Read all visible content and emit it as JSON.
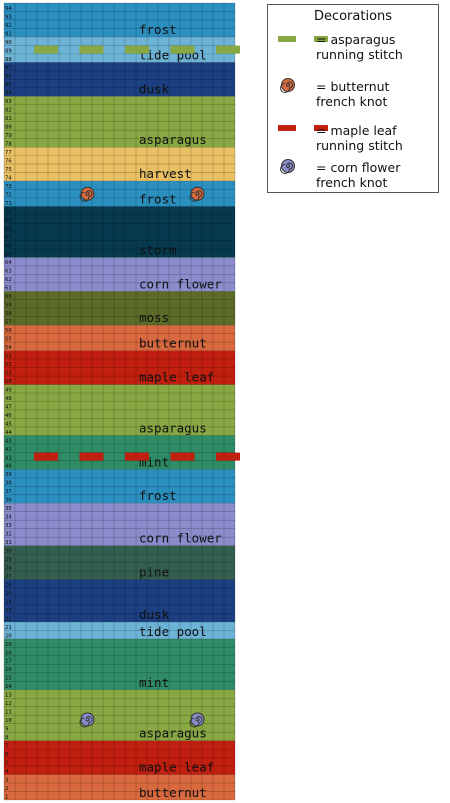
{
  "bands": [
    {
      "name": "butternut",
      "color": "#d9693e",
      "rows": [
        1,
        3
      ]
    },
    {
      "name": "maple leaf",
      "color": "#c11f10",
      "rows": [
        4,
        7
      ]
    },
    {
      "name": "asparagus",
      "color": "#88a843",
      "rows": [
        8,
        13
      ]
    },
    {
      "name": "mint",
      "color": "#2f8c66",
      "rows": [
        14,
        19
      ]
    },
    {
      "name": "tide pool",
      "color": "#6cb3d6",
      "rows": [
        20,
        21
      ]
    },
    {
      "name": "dusk",
      "color": "#1b3f80",
      "rows": [
        22,
        26
      ]
    },
    {
      "name": "pine",
      "color": "#345f50",
      "rows": [
        27,
        30
      ]
    },
    {
      "name": "corn flower",
      "color": "#8a8ccc",
      "rows": [
        31,
        35
      ]
    },
    {
      "name": "frost",
      "color": "#2b8fbf",
      "rows": [
        36,
        39
      ]
    },
    {
      "name": "mint",
      "color": "#2f8c66",
      "rows": [
        40,
        43
      ]
    },
    {
      "name": "asparagus",
      "color": "#88a843",
      "rows": [
        44,
        49
      ]
    },
    {
      "name": "maple leaf",
      "color": "#c11f10",
      "rows": [
        50,
        53
      ]
    },
    {
      "name": "butternut",
      "color": "#d9693e",
      "rows": [
        54,
        56
      ]
    },
    {
      "name": "moss",
      "color": "#5d6b28",
      "rows": [
        57,
        60
      ]
    },
    {
      "name": "corn flower",
      "color": "#8a8ccc",
      "rows": [
        61,
        64
      ]
    },
    {
      "name": "storm",
      "color": "#073a4e",
      "rows": [
        65,
        70
      ]
    },
    {
      "name": "frost",
      "color": "#2b8fbf",
      "rows": [
        71,
        73
      ]
    },
    {
      "name": "harvest",
      "color": "#e9c063",
      "rows": [
        74,
        77
      ]
    },
    {
      "name": "asparagus",
      "color": "#88a843",
      "rows": [
        78,
        83
      ]
    },
    {
      "name": "dusk",
      "color": "#1b3f80",
      "rows": [
        84,
        87
      ]
    },
    {
      "name": "tide pool",
      "color": "#6cb3d6",
      "rows": [
        88,
        90
      ]
    },
    {
      "name": "frost",
      "color": "#2b8fbf",
      "rows": [
        91,
        94
      ]
    }
  ],
  "decorations": [
    {
      "type": "running-stitch",
      "thread": "asparagus",
      "color": "#88a843",
      "row": 89
    },
    {
      "type": "french-knot",
      "thread": "butternut",
      "color": "#d9693e",
      "row": 72,
      "columns": [
        7,
        17
      ]
    },
    {
      "type": "running-stitch",
      "thread": "maple leaf",
      "color": "#c11f10",
      "row": 41
    },
    {
      "type": "french-knot",
      "thread": "corn flower",
      "color": "#8a8ccc",
      "row": 10,
      "columns": [
        7,
        17
      ]
    }
  ],
  "legend": {
    "title": "Decorations",
    "entries": [
      {
        "label": "= asparagus\nrunning stitch",
        "kind": "stitch",
        "color": "#88a843"
      },
      {
        "label": "= butternut\nfrench knot",
        "kind": "knot",
        "color": "#d9693e"
      },
      {
        "label": "= maple leaf\nrunning stitch",
        "kind": "stitch",
        "color": "#c11f10"
      },
      {
        "label": "= corn flower\nfrench knot",
        "kind": "knot",
        "color": "#8a8ccc"
      }
    ]
  }
}
